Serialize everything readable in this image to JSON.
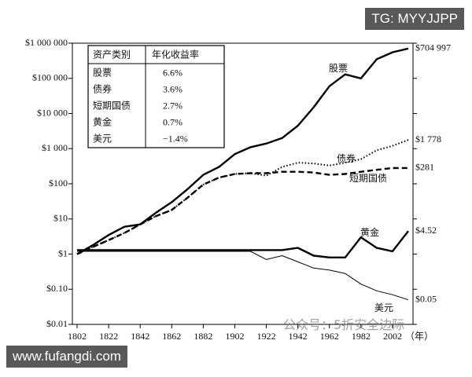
{
  "chart_data": {
    "type": "line",
    "log_y": true,
    "x": [
      1802,
      1812,
      1822,
      1832,
      1842,
      1852,
      1862,
      1872,
      1882,
      1892,
      1902,
      1912,
      1922,
      1932,
      1942,
      1952,
      1962,
      1972,
      1982,
      1992,
      2002,
      2012
    ],
    "xlim": [
      1799,
      2015
    ],
    "xticks": [
      1802,
      1822,
      1842,
      1862,
      1882,
      1902,
      1922,
      1942,
      1962,
      1982,
      2002
    ],
    "x_label": "（年）",
    "ylim": [
      0.01,
      1000000
    ],
    "yticks": [
      {
        "value": 0.01,
        "label": "$0.01"
      },
      {
        "value": 0.1,
        "label": "$0.10"
      },
      {
        "value": 1,
        "label": "$1"
      },
      {
        "value": 10,
        "label": "$10"
      },
      {
        "value": 100,
        "label": "$100"
      },
      {
        "value": 1000,
        "label": "$1 000"
      },
      {
        "value": 10000,
        "label": "$10 000"
      },
      {
        "value": 100000,
        "label": "$100 000"
      },
      {
        "value": 1000000,
        "label": "$1 000 000"
      }
    ],
    "series": [
      {
        "name": "股票",
        "color": "#000000",
        "line_style": "bold",
        "end_label": "$704 997",
        "values": [
          1,
          1.8,
          3.5,
          6,
          7,
          15,
          30,
          70,
          180,
          300,
          700,
          1100,
          1400,
          2000,
          4500,
          15000,
          60000,
          130000,
          100000,
          350000,
          550000,
          704997
        ]
      },
      {
        "name": "债券",
        "color": "#000000",
        "line_style": "dotted",
        "end_label": "$1 778",
        "values": [
          1,
          1.6,
          2.5,
          4,
          7,
          12,
          18,
          40,
          95,
          150,
          190,
          200,
          170,
          300,
          400,
          380,
          330,
          400,
          500,
          900,
          1200,
          1778
        ]
      },
      {
        "name": "短期国债",
        "color": "#000000",
        "line_style": "dashed",
        "end_label": "$281",
        "values": [
          1,
          1.6,
          2.5,
          4,
          7,
          12,
          18,
          40,
          95,
          150,
          190,
          200,
          200,
          220,
          220,
          210,
          180,
          190,
          220,
          250,
          280,
          281
        ]
      },
      {
        "name": "黄金",
        "color": "#000000",
        "line_style": "bold",
        "end_label": "$4.52",
        "values": [
          1.3,
          1.3,
          1.3,
          1.3,
          1.3,
          1.3,
          1.3,
          1.3,
          1.3,
          1.3,
          1.3,
          1.3,
          1.3,
          1.3,
          1.5,
          0.9,
          0.8,
          0.8,
          3,
          1.5,
          1.2,
          4.52
        ]
      },
      {
        "name": "美元",
        "color": "#000000",
        "line_style": "thin",
        "end_label": "$0.05",
        "values": [
          1.2,
          1.2,
          1.2,
          1.2,
          1.2,
          1.2,
          1.2,
          1.2,
          1.2,
          1.2,
          1.2,
          1.2,
          0.7,
          0.9,
          0.6,
          0.4,
          0.35,
          0.28,
          0.14,
          0.09,
          0.07,
          0.05
        ]
      }
    ],
    "table": {
      "header": [
        "资产类别",
        "年化收益率"
      ],
      "rows": [
        [
          "股票",
          "6.6%"
        ],
        [
          "债券",
          "3.6%"
        ],
        [
          "短期国债",
          "2.7%"
        ],
        [
          "黄金",
          "0.7%"
        ],
        [
          "美元",
          "−1.4%"
        ]
      ]
    }
  },
  "watermarks": [
    "TG: MYYJJPP",
    "www.fufangdi.com",
    "公众号：5折安全边际"
  ]
}
